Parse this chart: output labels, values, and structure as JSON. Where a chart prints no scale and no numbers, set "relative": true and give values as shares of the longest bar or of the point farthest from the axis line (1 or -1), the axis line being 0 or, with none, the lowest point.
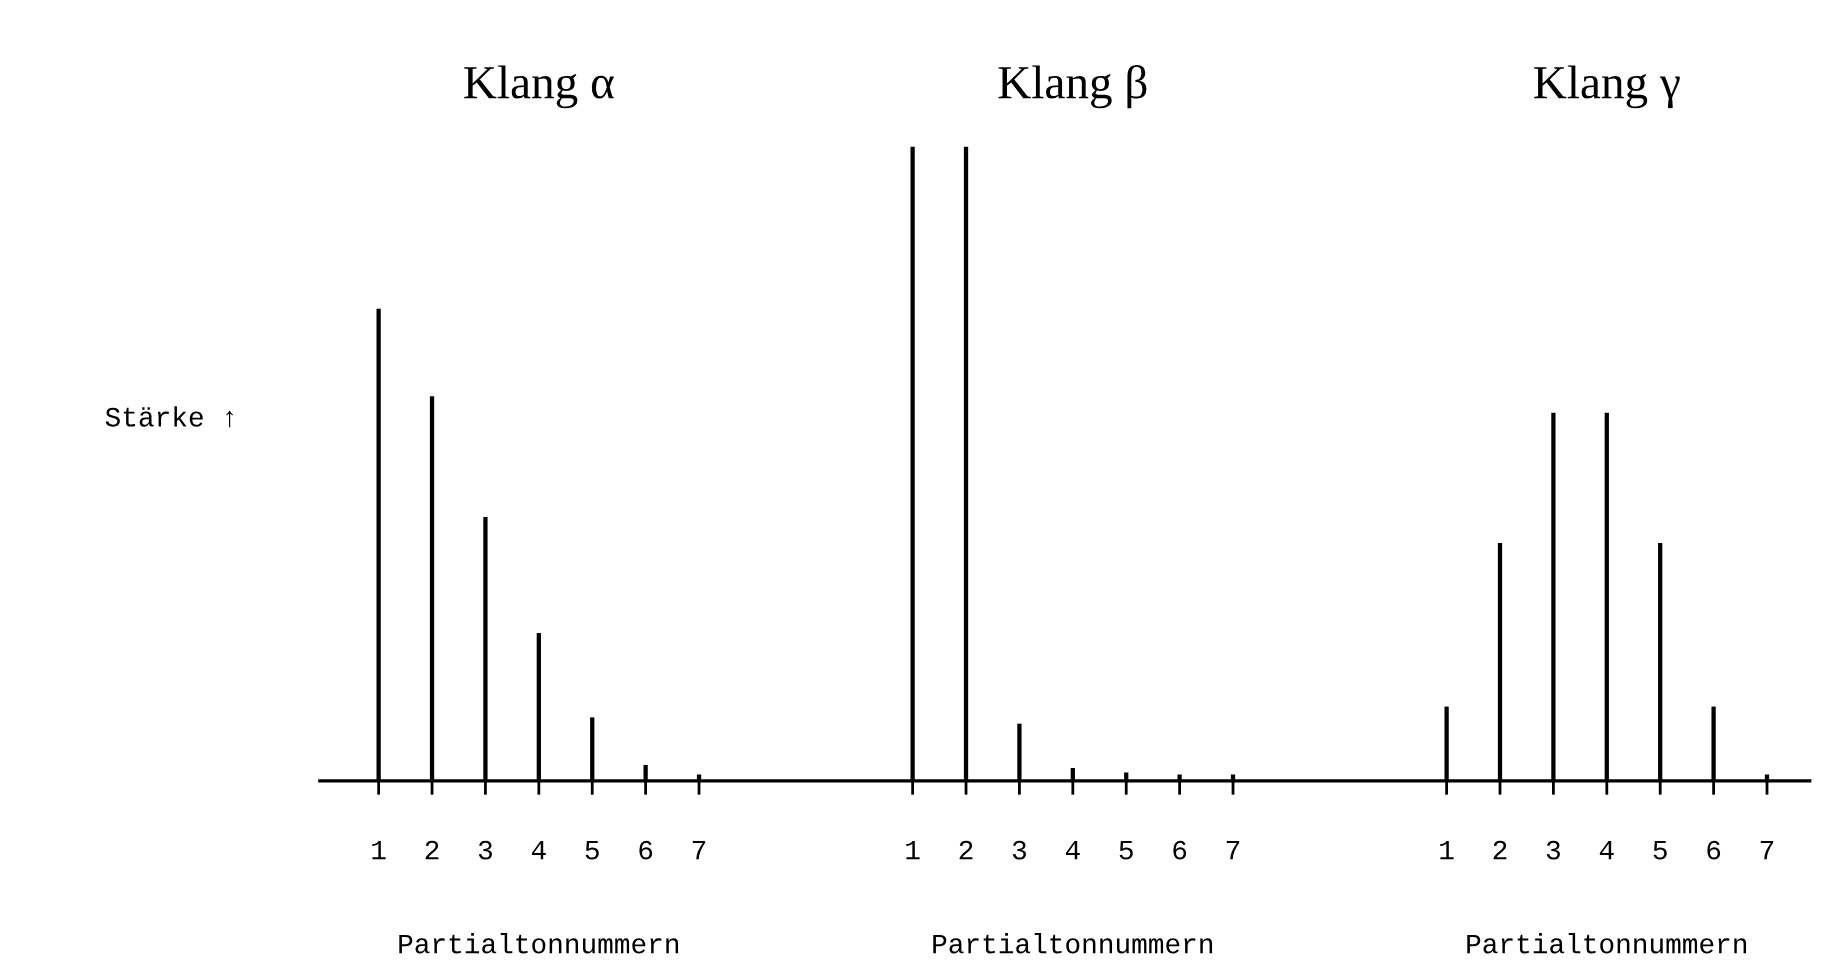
{
  "chart_data": {
    "type": "bar",
    "relative": true,
    "ylabel": "Stärke ↑",
    "categories": [
      "1",
      "2",
      "3",
      "4",
      "5",
      "6",
      "7",
      null,
      null,
      null,
      "1",
      "2",
      "3",
      "4",
      "5",
      "6",
      "7",
      null,
      null,
      null,
      "1",
      "2",
      "3",
      "4",
      "5",
      "6",
      "7"
    ],
    "values": [
      0.744,
      0.606,
      0.416,
      0.233,
      0.1,
      0.025,
      0.01,
      null,
      null,
      null,
      1,
      1,
      0.09,
      0.02,
      0.013,
      0.01,
      0.01,
      null,
      null,
      null,
      0.117,
      0.375,
      0.58,
      0.58,
      0.375,
      0.117,
      0.01
    ],
    "color": "#000000",
    "annotations": [
      "Klang α",
      "Klang β",
      "Klang γ",
      "Partialtonnummern",
      "Partialtonnummern",
      "Partialtonnummern"
    ]
  }
}
